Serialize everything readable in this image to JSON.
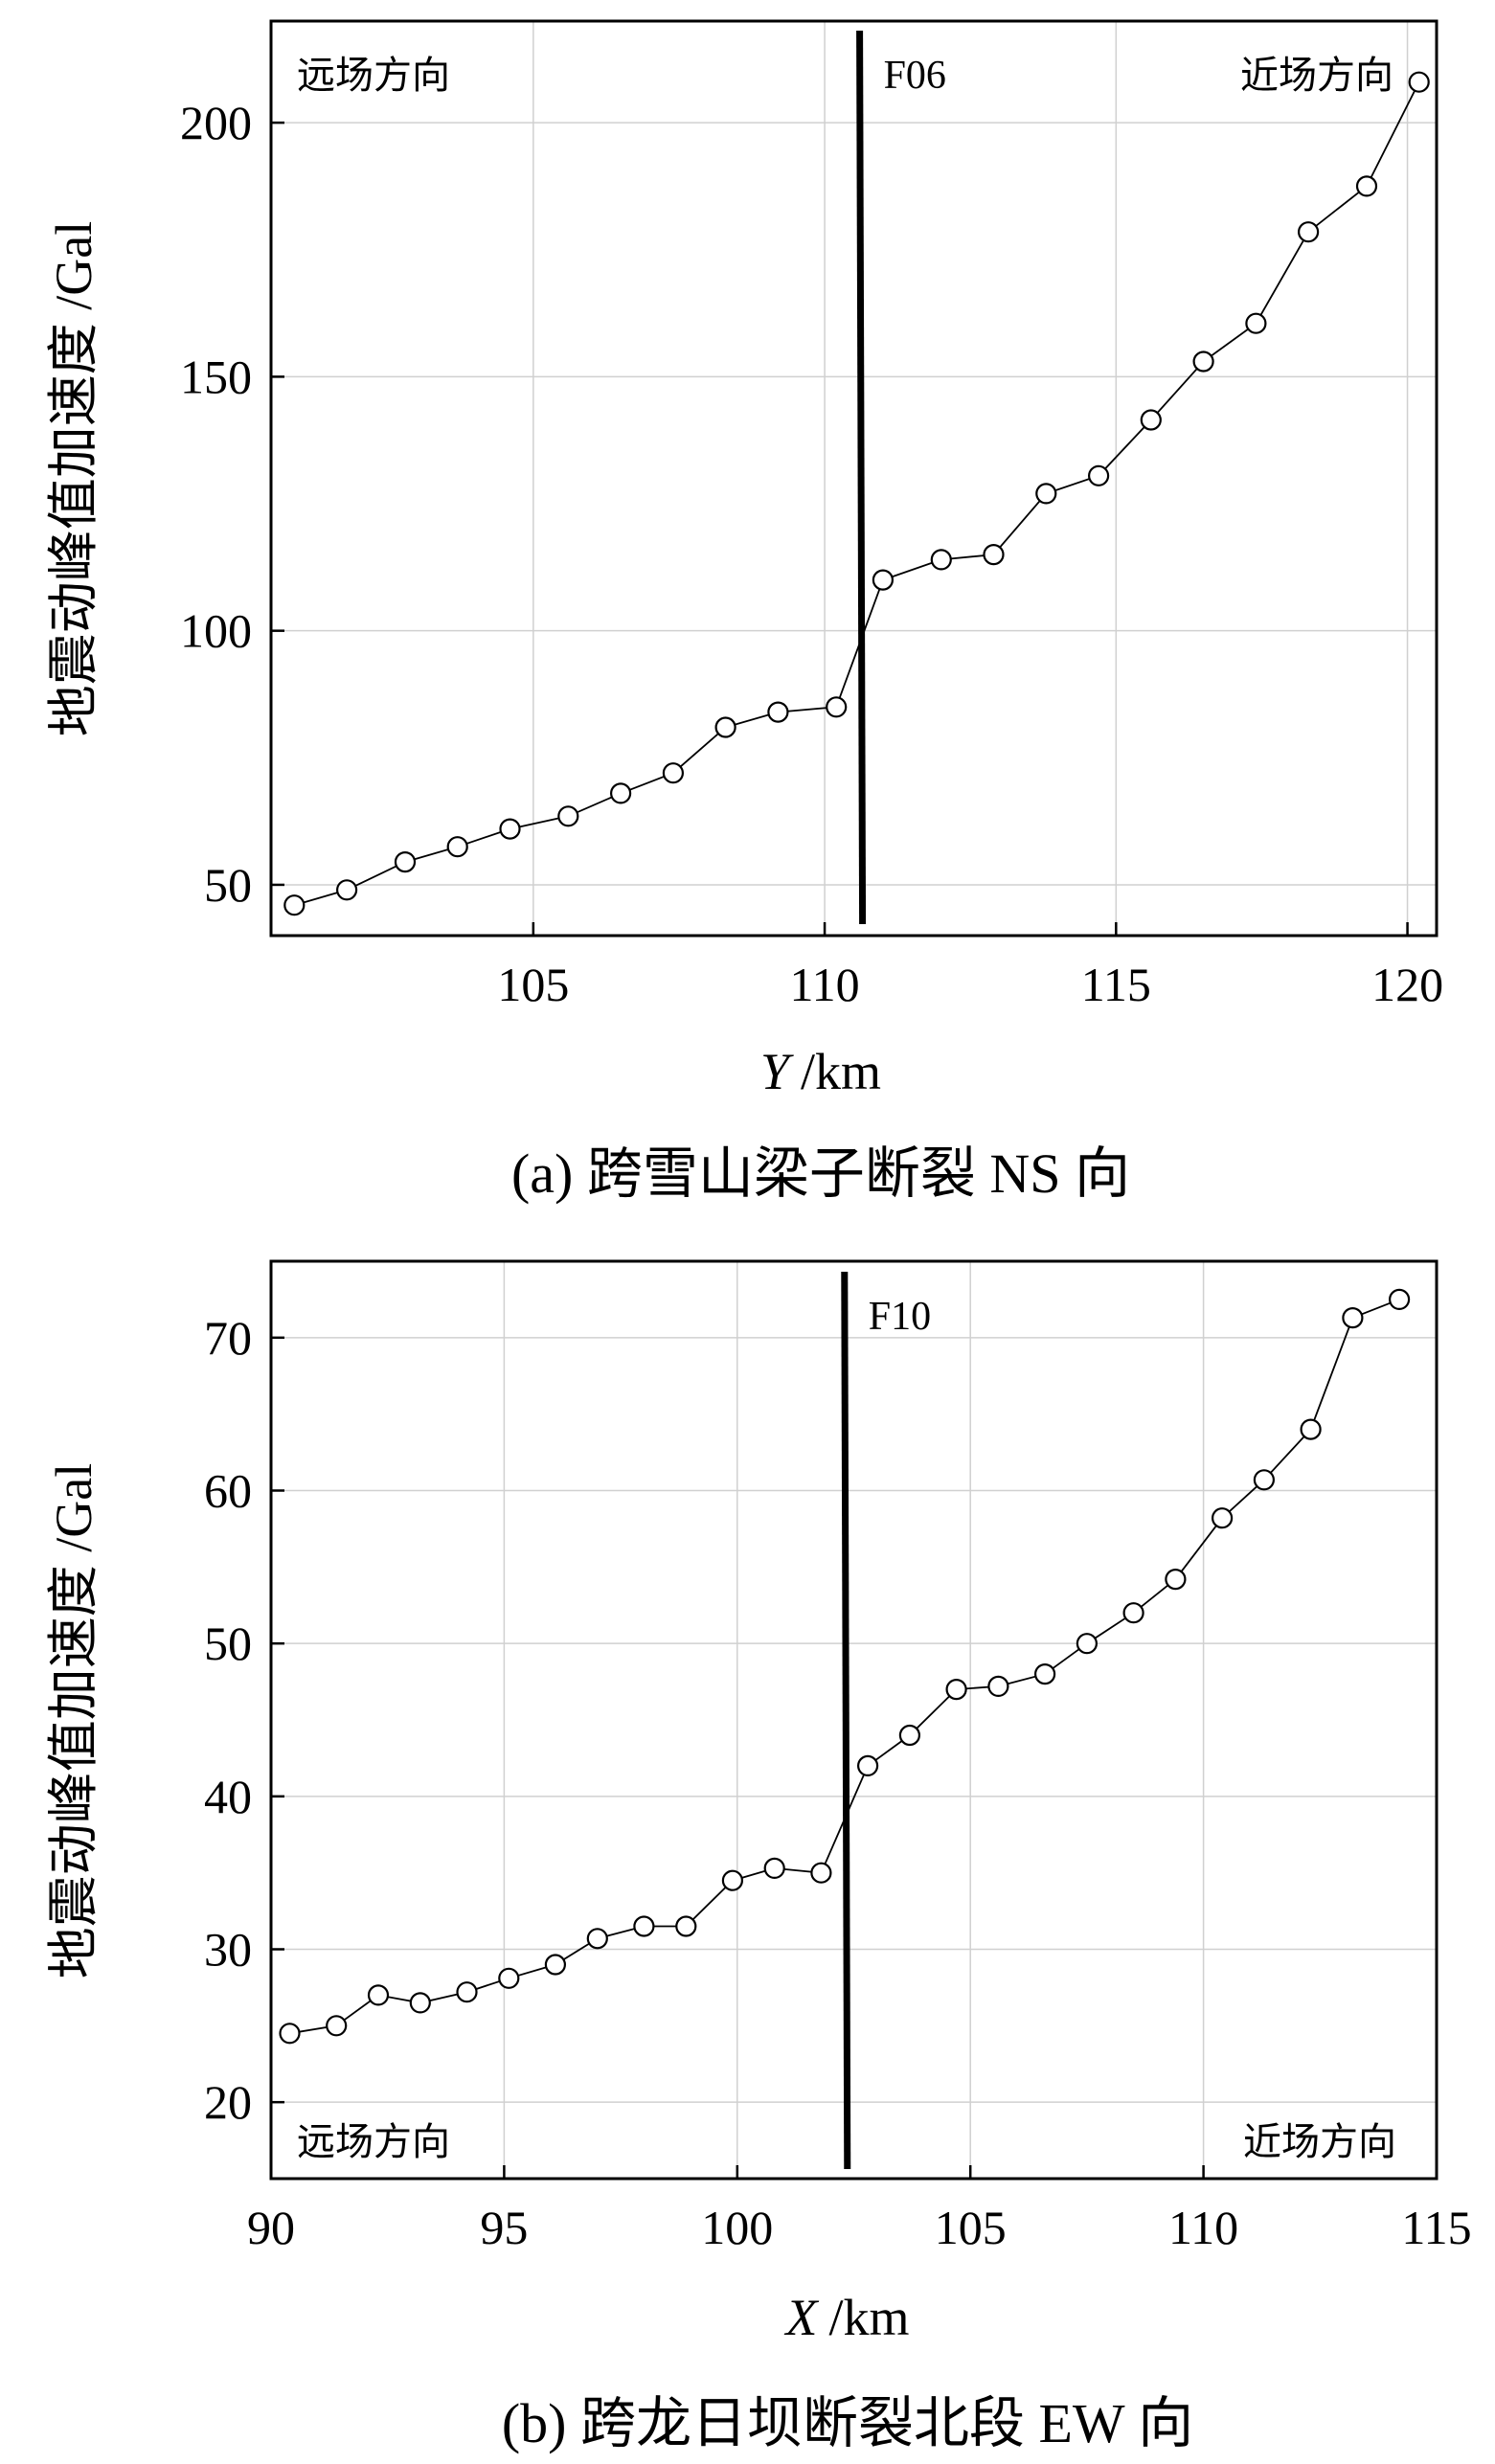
{
  "chart_data": [
    {
      "type": "line",
      "caption": "(a) 跨雪山梁子断裂 NS 向",
      "xlabel_var": "Y",
      "xlabel_unit": "/km",
      "ylabel": "地震动峰值加速度 /Gal",
      "xlim": [
        100.5,
        120.5
      ],
      "ylim": [
        40,
        220
      ],
      "xticks": [
        105,
        110,
        115,
        120
      ],
      "yticks": [
        50,
        100,
        150,
        200
      ],
      "grid": true,
      "fault": {
        "label": "F06",
        "x": 110.6
      },
      "annotations": {
        "left": "远场方向",
        "right": "近场方向"
      },
      "series": [
        {
          "x": [
            100.9,
            101.8,
            102.8,
            103.7,
            104.6,
            105.6,
            106.5,
            107.4,
            108.3,
            109.2,
            110.2,
            111.0,
            112.0,
            112.9,
            113.8,
            114.7,
            115.6,
            116.5,
            117.4,
            118.3,
            119.3,
            120.2
          ],
          "values": [
            46,
            49,
            54.5,
            57.5,
            61,
            63.5,
            68,
            72,
            81,
            84,
            85,
            110,
            114,
            115,
            127,
            130.5,
            141.5,
            153,
            160.5,
            178.5,
            187.5,
            208
          ]
        }
      ]
    },
    {
      "type": "line",
      "caption": "(b) 跨龙日坝断裂北段 EW 向",
      "xlabel_var": "X",
      "xlabel_unit": "/km",
      "ylabel": "地震动峰值加速度 /Gal",
      "xlim": [
        90,
        115
      ],
      "ylim": [
        15,
        75
      ],
      "xticks": [
        90,
        95,
        100,
        105,
        110,
        115
      ],
      "yticks": [
        20,
        30,
        40,
        50,
        60,
        70
      ],
      "grid": true,
      "fault": {
        "label": "F10",
        "x": 102.3
      },
      "annotations": {
        "left": "远场方向",
        "right": "近场方向"
      },
      "series": [
        {
          "x": [
            90.4,
            91.4,
            92.3,
            93.2,
            94.2,
            95.1,
            96.1,
            97.0,
            98.0,
            98.9,
            99.9,
            100.8,
            101.8,
            102.8,
            103.7,
            104.7,
            105.6,
            106.6,
            107.5,
            108.5,
            109.4,
            110.4,
            111.3,
            112.3,
            113.2,
            114.2
          ],
          "values": [
            24.5,
            25,
            27,
            26.5,
            27.2,
            28.1,
            29,
            30.7,
            31.5,
            31.5,
            34.5,
            35.3,
            35,
            42,
            44,
            47,
            47.2,
            48,
            50,
            52,
            54.2,
            58.2,
            60.7,
            64,
            71.3,
            72.5
          ]
        }
      ]
    }
  ]
}
